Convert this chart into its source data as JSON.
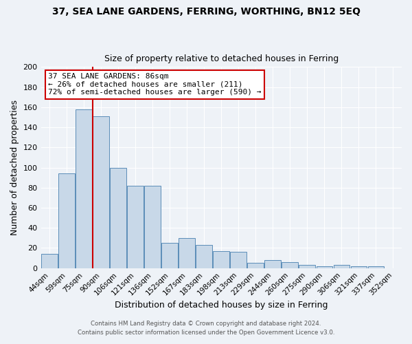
{
  "title": "37, SEA LANE GARDENS, FERRING, WORTHING, BN12 5EQ",
  "subtitle": "Size of property relative to detached houses in Ferring",
  "xlabel": "Distribution of detached houses by size in Ferring",
  "ylabel": "Number of detached properties",
  "bar_color": "#c8d8e8",
  "bar_edge_color": "#5b8db8",
  "categories": [
    "44sqm",
    "59sqm",
    "75sqm",
    "90sqm",
    "106sqm",
    "121sqm",
    "136sqm",
    "152sqm",
    "167sqm",
    "183sqm",
    "198sqm",
    "213sqm",
    "229sqm",
    "244sqm",
    "260sqm",
    "275sqm",
    "290sqm",
    "306sqm",
    "321sqm",
    "337sqm",
    "352sqm"
  ],
  "values": [
    14,
    94,
    158,
    151,
    100,
    82,
    82,
    25,
    30,
    23,
    17,
    16,
    5,
    8,
    6,
    3,
    2,
    3,
    2,
    2,
    0
  ],
  "ylim": [
    0,
    200
  ],
  "yticks": [
    0,
    20,
    40,
    60,
    80,
    100,
    120,
    140,
    160,
    180,
    200
  ],
  "annotation_title": "37 SEA LANE GARDENS: 86sqm",
  "annotation_line1": "← 26% of detached houses are smaller (211)",
  "annotation_line2": "72% of semi-detached houses are larger (590) →",
  "annotation_box_color": "#ffffff",
  "annotation_box_edge": "#cc0000",
  "footer1": "Contains HM Land Registry data © Crown copyright and database right 2024.",
  "footer2": "Contains public sector information licensed under the Open Government Licence v3.0.",
  "bg_color": "#eef2f7",
  "grid_color": "#ffffff",
  "red_line_color": "#cc0000"
}
